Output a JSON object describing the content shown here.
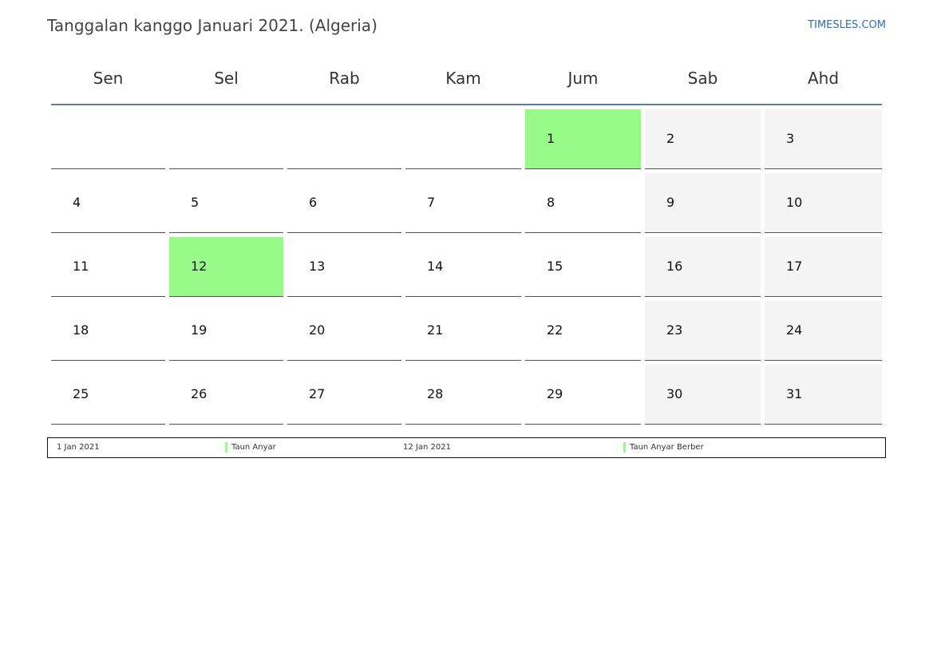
{
  "header": {
    "title": "Tanggalan kanggo Januari 2021. (Algeria)",
    "site": "TIMESLES.COM"
  },
  "calendar": {
    "weekdays": [
      "Sen",
      "Sel",
      "Rab",
      "Kam",
      "Jum",
      "Sab",
      "Ahd"
    ],
    "weeks": [
      [
        "",
        "",
        "",
        "",
        "1",
        "2",
        "3"
      ],
      [
        "4",
        "5",
        "6",
        "7",
        "8",
        "9",
        "10"
      ],
      [
        "11",
        "12",
        "13",
        "14",
        "15",
        "16",
        "17"
      ],
      [
        "18",
        "19",
        "20",
        "21",
        "22",
        "23",
        "24"
      ],
      [
        "25",
        "26",
        "27",
        "28",
        "29",
        "30",
        "31"
      ]
    ],
    "holiday_days": [
      "1",
      "12"
    ],
    "colors": {
      "holiday": "#98fb88",
      "weekend": "#f4f4f4",
      "header_rule": "#5b7aa0"
    }
  },
  "legend": {
    "items": [
      {
        "date": "1 Jan 2021",
        "name": "Taun Anyar"
      },
      {
        "date": "12 Jan 2021",
        "name": "Taun Anyar Berber"
      }
    ]
  }
}
